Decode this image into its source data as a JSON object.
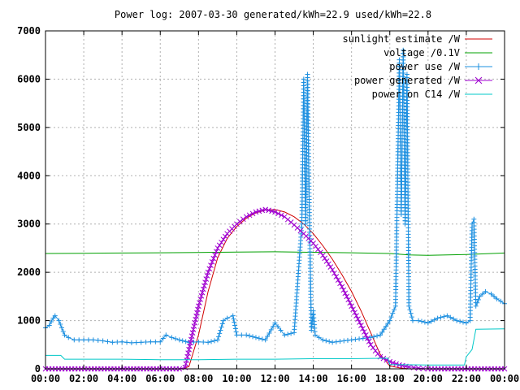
{
  "chart_data": {
    "type": "line",
    "title": "Power log: 2007-03-30 generated/kWh=22.9 used/kWh=22.8",
    "xlim": [
      0,
      24
    ],
    "ylim": [
      0,
      7000
    ],
    "grid": true,
    "legend_position": "top-right",
    "x_tick_labels": [
      "00:00",
      "02:00",
      "04:00",
      "06:00",
      "08:00",
      "10:00",
      "12:00",
      "14:00",
      "16:00",
      "18:00",
      "20:00",
      "22:00",
      "00:00"
    ],
    "y_tick_labels": [
      "0",
      "1000",
      "2000",
      "3000",
      "4000",
      "5000",
      "6000",
      "7000"
    ],
    "y_ticks": [
      0,
      1000,
      2000,
      3000,
      4000,
      5000,
      6000,
      7000
    ],
    "series": [
      {
        "name": "sunlight estimate /W",
        "color": "#d00000",
        "marker": "none",
        "x": [
          0,
          7.2,
          7.5,
          8,
          8.5,
          9,
          9.5,
          10,
          10.5,
          11,
          11.5,
          12,
          12.5,
          13,
          13.5,
          14,
          14.5,
          15,
          15.5,
          16,
          16.5,
          17,
          17.5,
          18,
          18.5,
          19,
          20,
          24
        ],
        "y": [
          0,
          0,
          50,
          700,
          1600,
          2300,
          2700,
          2950,
          3120,
          3230,
          3290,
          3300,
          3250,
          3150,
          3000,
          2800,
          2550,
          2270,
          1950,
          1600,
          1200,
          750,
          300,
          60,
          20,
          0,
          0,
          0
        ]
      },
      {
        "name": "voltage /0.1V",
        "color": "#00a000",
        "marker": "none",
        "x": [
          0,
          2,
          4,
          6,
          8,
          10,
          12,
          14,
          16,
          18,
          19,
          20,
          22,
          24
        ],
        "y": [
          2390,
          2395,
          2400,
          2405,
          2410,
          2420,
          2425,
          2415,
          2405,
          2390,
          2360,
          2350,
          2370,
          2400
        ]
      },
      {
        "name": "power use /W",
        "color": "#1e90e0",
        "marker": "plus",
        "x": [
          0,
          0.2,
          0.4,
          0.5,
          0.7,
          1.0,
          1.2,
          1.5,
          2.0,
          2.5,
          3.0,
          3.5,
          4.0,
          4.5,
          5.0,
          5.5,
          6.0,
          6.3,
          6.6,
          7.0,
          7.5,
          8.0,
          8.5,
          9.0,
          9.3,
          9.5,
          9.8,
          10.0,
          10.5,
          11.0,
          11.5,
          12.0,
          12.3,
          12.5,
          13.0,
          13.4,
          13.5,
          13.6,
          13.7,
          13.8,
          13.9,
          14.0,
          14.1,
          14.5,
          15.0,
          16.0,
          17.0,
          17.5,
          18.0,
          18.3,
          18.5,
          18.6,
          18.7,
          18.8,
          18.9,
          19.0,
          19.2,
          19.5,
          20.0,
          20.5,
          21.0,
          21.5,
          22.0,
          22.2,
          22.3,
          22.4,
          22.5,
          22.7,
          23.0,
          23.3,
          23.6,
          24.0
        ],
        "y": [
          850,
          900,
          1050,
          1100,
          1000,
          700,
          650,
          600,
          600,
          600,
          580,
          550,
          560,
          540,
          550,
          560,
          560,
          700,
          650,
          600,
          550,
          560,
          550,
          600,
          1000,
          1050,
          1100,
          700,
          700,
          650,
          600,
          950,
          800,
          700,
          750,
          3000,
          6000,
          3000,
          6100,
          3100,
          800,
          1200,
          700,
          600,
          550,
          600,
          650,
          700,
          1000,
          1300,
          6400,
          3200,
          6600,
          3000,
          6100,
          1300,
          1000,
          1000,
          950,
          1050,
          1100,
          1000,
          950,
          1000,
          3000,
          3100,
          1300,
          1500,
          1600,
          1550,
          1450,
          1350
        ]
      },
      {
        "name": "power generated /W",
        "color": "#a000d0",
        "marker": "cross",
        "x": [
          0,
          7.0,
          7.3,
          7.5,
          8,
          8.5,
          9,
          9.5,
          10,
          10.5,
          11,
          11.5,
          12,
          12.5,
          13,
          13.5,
          14,
          14.5,
          15,
          15.5,
          16,
          16.5,
          17,
          17.5,
          18,
          18.5,
          19,
          19.5,
          20,
          24
        ],
        "y": [
          0,
          0,
          30,
          400,
          1300,
          2000,
          2500,
          2800,
          3000,
          3150,
          3250,
          3300,
          3250,
          3150,
          2980,
          2800,
          2600,
          2350,
          2050,
          1700,
          1300,
          900,
          500,
          250,
          150,
          80,
          40,
          15,
          0,
          0
        ]
      },
      {
        "name": "power on C14 /W",
        "color": "#00c8c8",
        "marker": "none",
        "x": [
          0,
          0.8,
          1.0,
          4.0,
          6.0,
          8.0,
          10.0,
          12.0,
          14.0,
          16.0,
          17.9,
          18.0,
          20.0,
          21.9,
          22.0,
          22.3,
          22.5,
          24.0
        ],
        "y": [
          280,
          280,
          200,
          200,
          190,
          190,
          200,
          200,
          210,
          210,
          220,
          90,
          80,
          80,
          250,
          400,
          820,
          830
        ]
      }
    ]
  }
}
